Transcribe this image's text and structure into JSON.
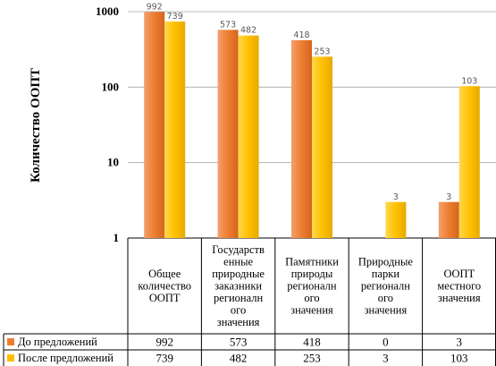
{
  "chart_data": {
    "type": "bar",
    "ylabel": "Количество ООПТ",
    "yscale": "log",
    "ylim": [
      1,
      1000
    ],
    "y_ticks": [
      "1",
      "10",
      "100",
      "1000"
    ],
    "grid": true,
    "legend": "data-table",
    "categories": [
      [
        "Общее",
        "количество",
        "ООПТ"
      ],
      [
        "Государств",
        "енные",
        "природные",
        "заказники",
        "регионалн",
        "ого",
        "значения"
      ],
      [
        "Памятники",
        "природы",
        "регионалн",
        "ого",
        "значения"
      ],
      [
        "Природные",
        "парки",
        "регионалн",
        "ого",
        "значения"
      ],
      [
        "ООПТ",
        "местного",
        "значения"
      ]
    ],
    "series": [
      {
        "name": "До предложений",
        "color": "#ED7D31",
        "values": [
          992,
          573,
          418,
          0,
          3
        ],
        "labels": [
          "992",
          "573",
          "418",
          "",
          "3"
        ],
        "table": [
          "992",
          "573",
          "418",
          "0",
          "3"
        ]
      },
      {
        "name": "После предложений",
        "color": "#FFC000",
        "values": [
          739,
          482,
          253,
          3,
          103
        ],
        "labels": [
          "739",
          "482",
          "253",
          "3",
          "103"
        ],
        "table": [
          "739",
          "482",
          "253",
          "3",
          "103"
        ]
      }
    ]
  }
}
